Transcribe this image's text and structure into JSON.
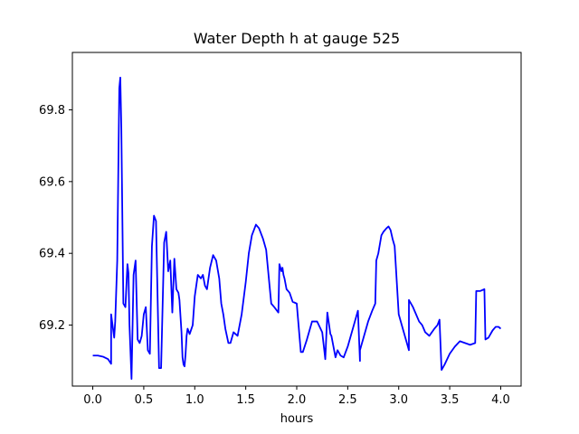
{
  "chart_data": {
    "type": "line",
    "title": "Water Depth h at gauge 525",
    "xlabel": "hours",
    "ylabel": "",
    "xlim": [
      -0.2,
      4.2
    ],
    "ylim": [
      69.03,
      69.96
    ],
    "x_ticks": [
      0.0,
      0.5,
      1.0,
      1.5,
      2.0,
      2.5,
      3.0,
      3.5,
      4.0
    ],
    "x_tick_labels": [
      "0.0",
      "0.5",
      "1.0",
      "1.5",
      "2.0",
      "2.5",
      "3.0",
      "3.5",
      "4.0"
    ],
    "y_ticks": [
      69.2,
      69.4,
      69.6,
      69.8
    ],
    "y_tick_labels": [
      "69.2",
      "69.4",
      "69.6",
      "69.8"
    ],
    "grid": false,
    "series": [
      {
        "color": "#0000ff",
        "x": [
          0.0,
          0.05,
          0.1,
          0.15,
          0.18,
          0.18,
          0.21,
          0.22,
          0.24,
          0.26,
          0.27,
          0.28,
          0.3,
          0.32,
          0.34,
          0.35,
          0.36,
          0.38,
          0.4,
          0.42,
          0.44,
          0.46,
          0.48,
          0.5,
          0.52,
          0.54,
          0.56,
          0.58,
          0.6,
          0.62,
          0.65,
          0.67,
          0.7,
          0.72,
          0.74,
          0.76,
          0.78,
          0.8,
          0.82,
          0.84,
          0.85,
          0.87,
          0.88,
          0.89,
          0.9,
          0.91,
          0.92,
          0.93,
          0.95,
          0.98,
          1.0,
          1.03,
          1.06,
          1.08,
          1.1,
          1.12,
          1.15,
          1.18,
          1.21,
          1.24,
          1.26,
          1.28,
          1.3,
          1.33,
          1.35,
          1.38,
          1.42,
          1.46,
          1.5,
          1.53,
          1.56,
          1.6,
          1.63,
          1.67,
          1.7,
          1.75,
          1.78,
          1.82,
          1.83,
          1.85,
          1.86,
          1.87,
          1.88,
          1.9,
          1.93,
          1.96,
          2.0,
          2.04,
          2.06,
          2.1,
          2.15,
          2.2,
          2.25,
          2.28,
          2.3,
          2.31,
          2.33,
          2.34,
          2.36,
          2.38,
          2.4,
          2.43,
          2.46,
          2.5,
          2.55,
          2.6,
          2.62,
          2.62,
          2.66,
          2.7,
          2.74,
          2.77,
          2.78,
          2.8,
          2.83,
          2.85,
          2.88,
          2.9,
          2.92,
          2.94,
          2.96,
          3.0,
          3.05,
          3.1,
          3.1,
          3.12,
          3.14,
          3.17,
          3.2,
          3.23,
          3.26,
          3.3,
          3.35,
          3.38,
          3.4,
          3.42,
          3.45,
          3.5,
          3.55,
          3.6,
          3.65,
          3.7,
          3.75,
          3.76,
          3.8,
          3.84,
          3.85,
          3.88,
          3.92,
          3.95,
          3.98,
          4.0
        ],
        "y": [
          69.115,
          69.115,
          69.112,
          69.105,
          69.092,
          69.23,
          69.165,
          69.21,
          69.38,
          69.86,
          69.89,
          69.75,
          69.26,
          69.25,
          69.37,
          69.345,
          69.2,
          69.05,
          69.34,
          69.38,
          69.16,
          69.15,
          69.17,
          69.23,
          69.25,
          69.13,
          69.12,
          69.42,
          69.505,
          69.49,
          69.08,
          69.08,
          69.43,
          69.46,
          69.35,
          69.38,
          69.235,
          69.385,
          69.3,
          69.29,
          69.27,
          69.18,
          69.11,
          69.09,
          69.085,
          69.12,
          69.17,
          69.19,
          69.175,
          69.2,
          69.28,
          69.34,
          69.33,
          69.34,
          69.31,
          69.3,
          69.36,
          69.395,
          69.38,
          69.33,
          69.26,
          69.23,
          69.19,
          69.15,
          69.15,
          69.18,
          69.17,
          69.23,
          69.32,
          69.4,
          69.45,
          69.48,
          69.47,
          69.44,
          69.41,
          69.26,
          69.25,
          69.235,
          69.37,
          69.35,
          69.36,
          69.34,
          69.33,
          69.3,
          69.29,
          69.265,
          69.26,
          69.125,
          69.125,
          69.16,
          69.21,
          69.21,
          69.18,
          69.105,
          69.235,
          69.215,
          69.175,
          69.17,
          69.14,
          69.11,
          69.13,
          69.115,
          69.11,
          69.14,
          69.19,
          69.24,
          69.1,
          69.13,
          69.17,
          69.21,
          69.24,
          69.26,
          69.38,
          69.4,
          69.45,
          69.46,
          69.47,
          69.475,
          69.465,
          69.44,
          69.42,
          69.23,
          69.18,
          69.13,
          69.27,
          69.26,
          69.25,
          69.23,
          69.21,
          69.2,
          69.18,
          69.17,
          69.19,
          69.2,
          69.215,
          69.075,
          69.09,
          69.12,
          69.14,
          69.155,
          69.15,
          69.145,
          69.15,
          69.295,
          69.295,
          69.3,
          69.16,
          69.165,
          69.185,
          69.195,
          69.195,
          69.19
        ]
      }
    ]
  }
}
